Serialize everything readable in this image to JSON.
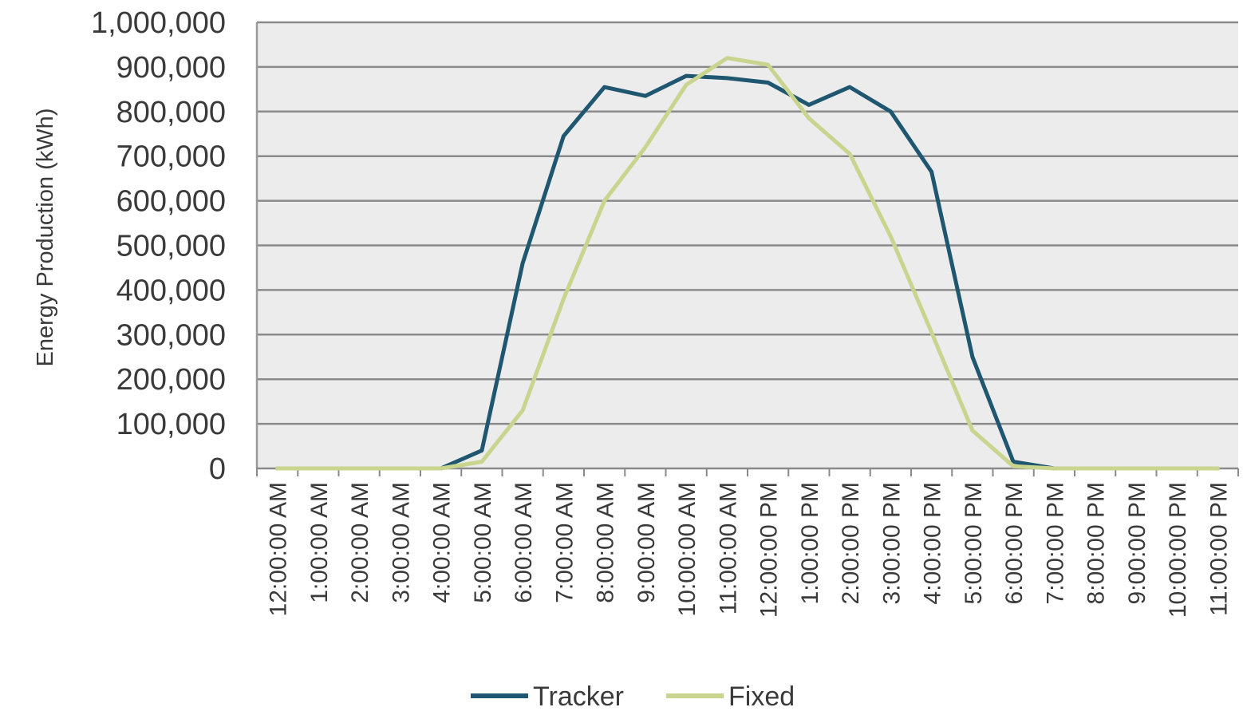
{
  "chart_data": {
    "type": "line",
    "title": "",
    "xlabel": "",
    "ylabel": "Energy Production (kWh)",
    "ylim": [
      0,
      1000000
    ],
    "y_ticks": [
      "0",
      "100,000",
      "200,000",
      "300,000",
      "400,000",
      "500,000",
      "600,000",
      "700,000",
      "800,000",
      "900,000",
      "1,000,000"
    ],
    "categories": [
      "12:00:00 AM",
      "1:00:00 AM",
      "2:00:00 AM",
      "3:00:00 AM",
      "4:00:00 AM",
      "5:00:00 AM",
      "6:00:00 AM",
      "7:00:00 AM",
      "8:00:00 AM",
      "9:00:00 AM",
      "10:00:00 AM",
      "11:00:00 AM",
      "12:00:00 PM",
      "1:00:00 PM",
      "2:00:00 PM",
      "3:00:00 PM",
      "4:00:00 PM",
      "5:00:00 PM",
      "6:00:00 PM",
      "7:00:00 PM",
      "8:00:00 PM",
      "9:00:00 PM",
      "10:00:00 PM",
      "11:00:00 PM"
    ],
    "series": [
      {
        "name": "Tracker",
        "color": "#1f5670",
        "values": [
          0,
          0,
          0,
          0,
          0,
          40000,
          460000,
          745000,
          855000,
          835000,
          880000,
          875000,
          865000,
          815000,
          855000,
          800000,
          665000,
          250000,
          15000,
          0,
          0,
          0,
          0,
          0
        ]
      },
      {
        "name": "Fixed",
        "color": "#c9d48f",
        "values": [
          0,
          0,
          0,
          0,
          0,
          15000,
          130000,
          380000,
          600000,
          720000,
          860000,
          920000,
          905000,
          785000,
          705000,
          520000,
          305000,
          85000,
          5000,
          0,
          0,
          0,
          0,
          0
        ]
      }
    ],
    "grid": true,
    "legend_position": "bottom-center",
    "plot_background": "#ececec",
    "gridline_color": "#8a8a8a"
  }
}
